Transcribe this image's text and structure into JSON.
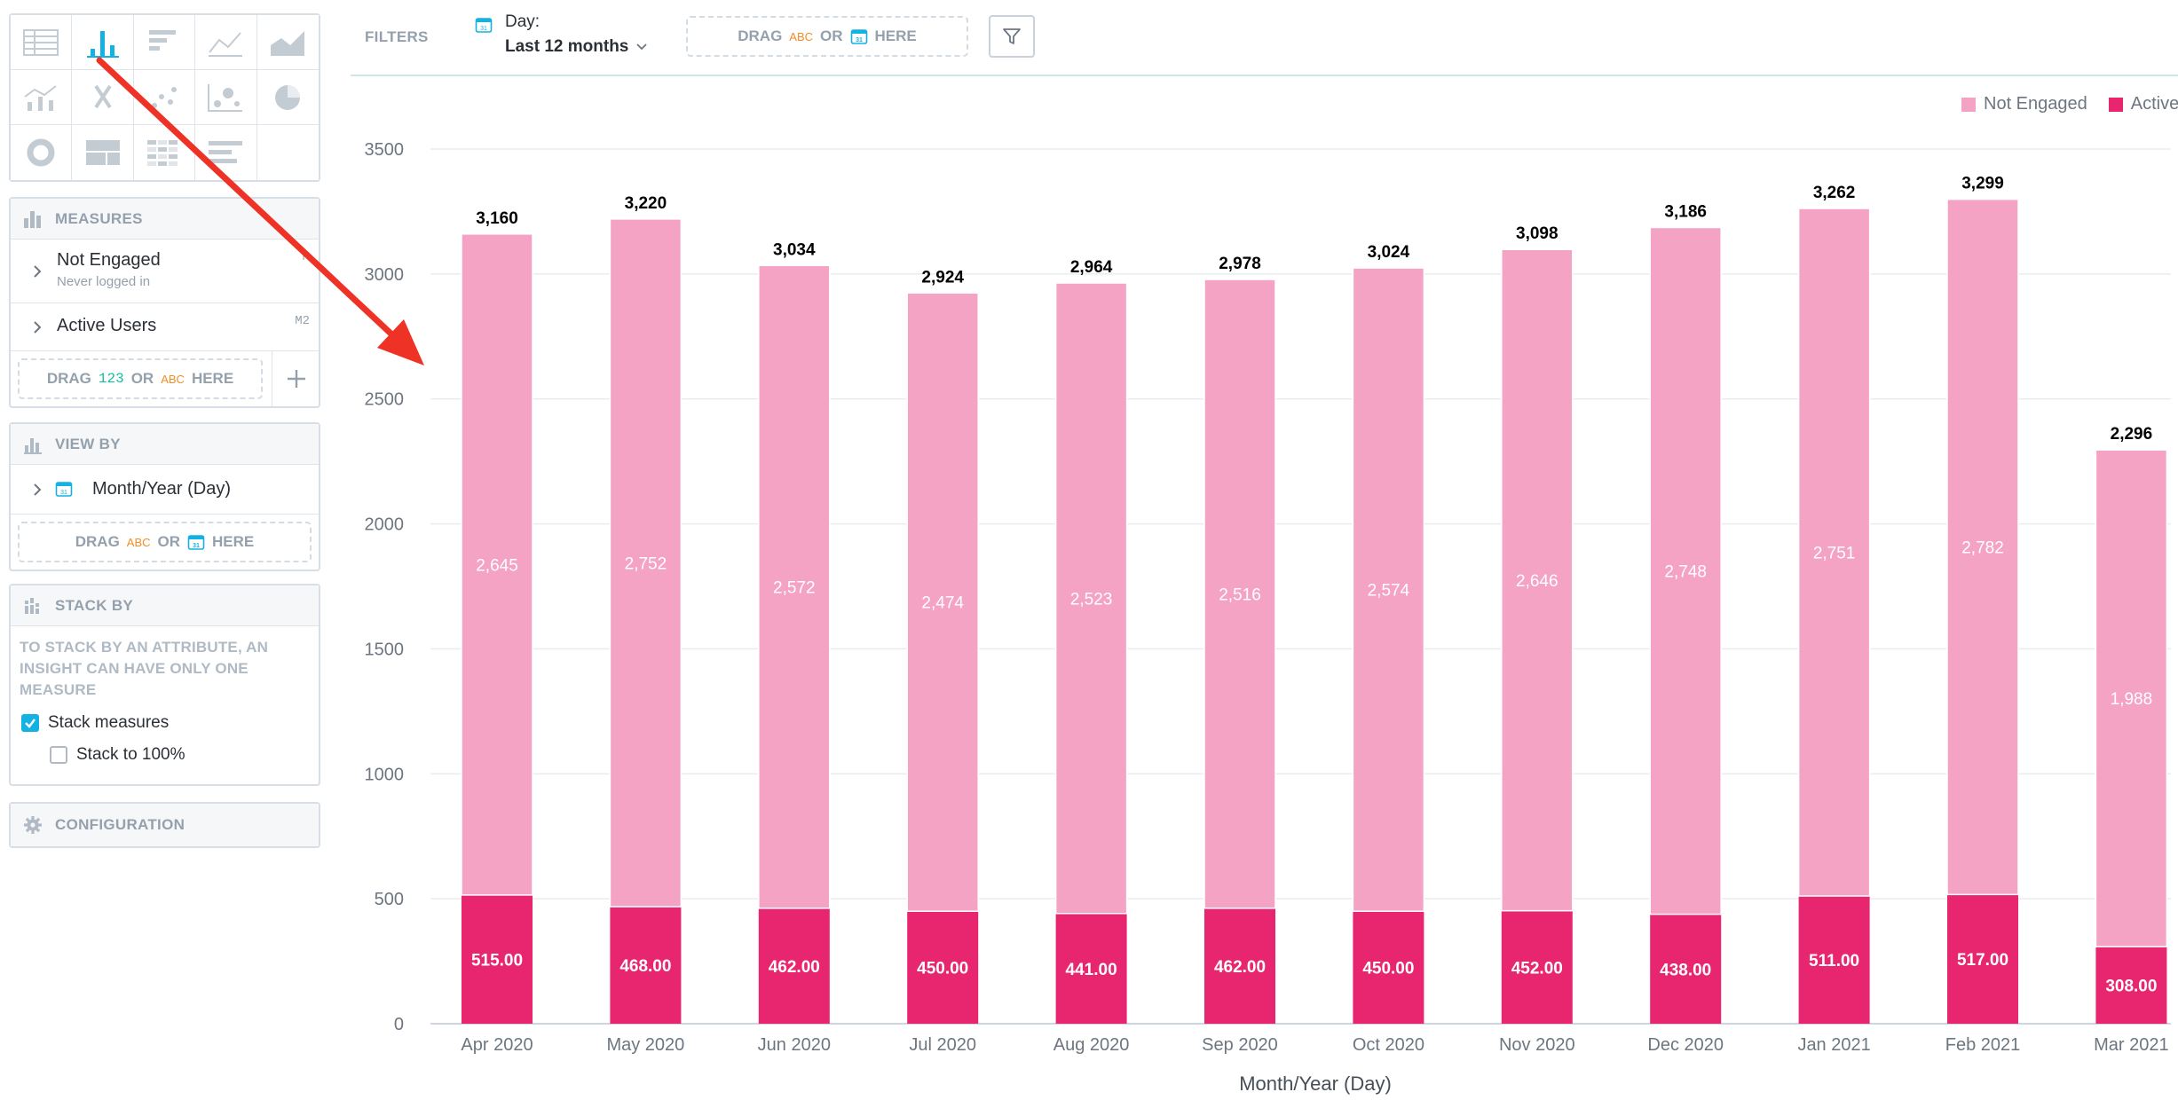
{
  "colors": {
    "not_engaged": "#f5a3c5",
    "active_users": "#e8266f",
    "accent": "#14b2e2",
    "annotation": "#ee3226"
  },
  "viz_types": [
    {
      "name": "table",
      "icon": "table-icon"
    },
    {
      "name": "column",
      "icon": "column-chart-icon",
      "active": true
    },
    {
      "name": "bar",
      "icon": "bar-chart-icon"
    },
    {
      "name": "line",
      "icon": "line-chart-icon"
    },
    {
      "name": "area",
      "icon": "area-chart-icon"
    },
    {
      "name": "combo",
      "icon": "combo-chart-icon"
    },
    {
      "name": "headline",
      "icon": "headline-icon"
    },
    {
      "name": "scatter",
      "icon": "scatter-plot-icon"
    },
    {
      "name": "bubble",
      "icon": "bubble-chart-icon"
    },
    {
      "name": "pie",
      "icon": "pie-chart-icon"
    },
    {
      "name": "donut",
      "icon": "donut-chart-icon"
    },
    {
      "name": "treemap",
      "icon": "treemap-icon"
    },
    {
      "name": "heatmap",
      "icon": "heatmap-icon"
    },
    {
      "name": "bullet",
      "icon": "bullet-chart-icon"
    },
    {
      "name": "empty",
      "icon": ""
    }
  ],
  "measures": {
    "title": "MEASURES",
    "items": [
      {
        "label": "Not Engaged",
        "sub": "Never logged in",
        "tag": "M"
      },
      {
        "label": "Active Users",
        "sub": "",
        "tag": "M2"
      }
    ],
    "drop": {
      "drag": "DRAG",
      "num": "123",
      "or": "OR",
      "abc": "ABC",
      "here": "HERE"
    }
  },
  "view_by": {
    "title": "VIEW BY",
    "item": "Month/Year (Day)",
    "drop": {
      "drag": "DRAG",
      "abc": "ABC",
      "or": "OR",
      "here": "HERE"
    }
  },
  "stack_by": {
    "title": "STACK BY",
    "note": "TO STACK BY AN ATTRIBUTE, AN INSIGHT CAN HAVE ONLY ONE MEASURE",
    "stack_measures": "Stack measures",
    "stack_100": "Stack to 100%"
  },
  "configuration": {
    "title": "CONFIGURATION"
  },
  "filters": {
    "label": "FILTERS",
    "date_label": "Day:",
    "date_value": "Last 12 months",
    "drop": {
      "drag": "DRAG",
      "abc": "ABC",
      "or": "OR",
      "here": "HERE"
    }
  },
  "chart_data": {
    "type": "bar",
    "stacked": true,
    "categories": [
      "Apr 2020",
      "May 2020",
      "Jun 2020",
      "Jul 2020",
      "Aug 2020",
      "Sep 2020",
      "Oct 2020",
      "Nov 2020",
      "Dec 2020",
      "Jan 2021",
      "Feb 2021",
      "Mar 2021"
    ],
    "series": [
      {
        "name": "Not Engaged",
        "values": [
          2645,
          2752,
          2572,
          2474,
          2523,
          2516,
          2574,
          2646,
          2748,
          2751,
          2782,
          1988
        ],
        "labels": [
          "2,645",
          "2,752",
          "2,572",
          "2,474",
          "2,523",
          "2,516",
          "2,574",
          "2,646",
          "2,748",
          "2,751",
          "2,782",
          "1,988"
        ]
      },
      {
        "name": "Active Users",
        "values": [
          515,
          468,
          462,
          450,
          441,
          462,
          450,
          452,
          438,
          511,
          517,
          308
        ],
        "labels": [
          "515.00",
          "468.00",
          "462.00",
          "450.00",
          "441.00",
          "462.00",
          "450.00",
          "452.00",
          "438.00",
          "511.00",
          "517.00",
          "308.00"
        ]
      }
    ],
    "totals": [
      "3,160",
      "3,220",
      "3,034",
      "2,924",
      "2,964",
      "2,978",
      "3,024",
      "3,098",
      "3,186",
      "3,262",
      "3,299",
      "2,296"
    ],
    "xlabel": "Month/Year (Day)",
    "ylabel": "",
    "ylim": [
      0,
      3500
    ],
    "yticks": [
      0,
      500,
      1000,
      1500,
      2000,
      2500,
      3000,
      3500
    ],
    "legend_position": "top-right",
    "grid": true
  }
}
